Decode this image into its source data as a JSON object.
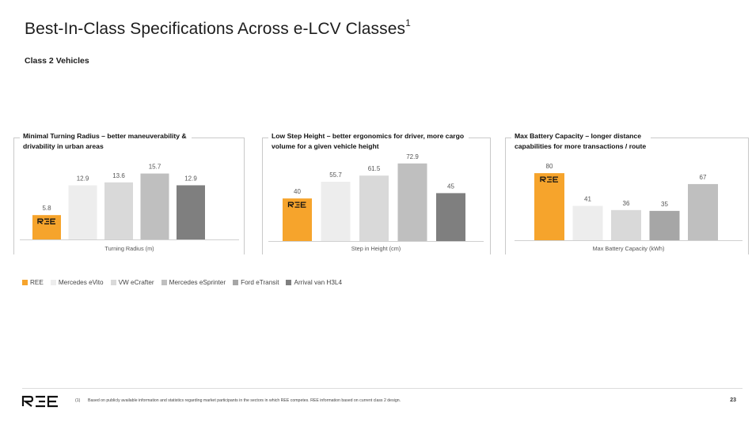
{
  "page": {
    "title": "Best-In-Class Specifications Across e-LCV Classes",
    "title_superscript": "1",
    "subtitle": "Class 2 Vehicles",
    "footnote_marker": "(1)",
    "footnote": "Based on publicly available information and statistics regarding market participants in the sectors in which REE competes. REE information based on current class 2 design.",
    "page_number": "23",
    "logo_icon": "ree-logo-icon"
  },
  "colors": {
    "REE": "#F6A42C",
    "Mercedes eVito": "#EDEDED",
    "VW eCrafter": "#D9D9D9",
    "Mercedes eSprinter": "#BFBFBF",
    "Ford eTransit": "#A6A6A6",
    "Arrival van H3L4": "#7F7F7F"
  },
  "legend": [
    "REE",
    "Mercedes eVito",
    "VW eCrafter",
    "Mercedes eSprinter",
    "Ford eTransit",
    "Arrival van H3L4"
  ],
  "chart_data": [
    {
      "type": "bar",
      "title_line1": "Minimal Turning Radius – better maneuverability &",
      "title_line2": "drivability in urban areas",
      "xlabel": "Turning Radius (m)",
      "ylim": [
        0,
        16
      ],
      "categories": [
        "REE",
        "Mercedes eVito",
        "VW eCrafter",
        "Mercedes eSprinter",
        "Arrival van H3L4"
      ],
      "values": [
        5.8,
        12.9,
        13.6,
        15.7,
        12.9
      ]
    },
    {
      "type": "bar",
      "title_line1": "Low Step Height – better ergonomics for driver, more cargo",
      "title_line2": "volume for a given vehicle height",
      "xlabel": "Step in Height (cm)",
      "ylim": [
        0,
        75
      ],
      "categories": [
        "REE",
        "Mercedes eVito",
        "VW eCrafter",
        "Mercedes eSprinter",
        "Arrival van H3L4"
      ],
      "values": [
        40,
        55.7,
        61.5,
        72.9,
        45
      ]
    },
    {
      "type": "bar",
      "title_line1": "Max Battery Capacity – longer distance",
      "title_line2": "capabilities  for more transactions / route",
      "xlabel": "Max Battery Capacity (kWh)",
      "ylim": [
        0,
        82
      ],
      "categories": [
        "REE",
        "Mercedes eVito",
        "VW eCrafter",
        "Ford eTransit",
        "Mercedes eSprinter"
      ],
      "values": [
        80,
        41,
        36,
        35,
        67
      ]
    }
  ]
}
